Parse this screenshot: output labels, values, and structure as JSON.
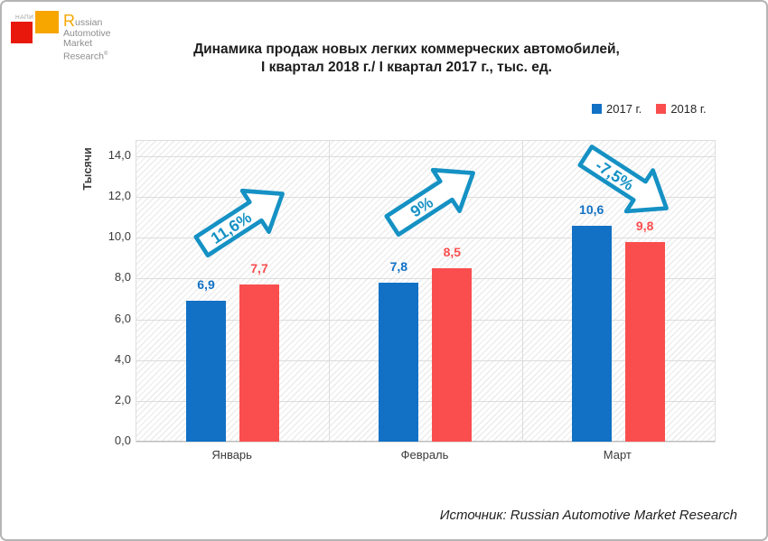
{
  "logo": {
    "napi": "НАПИ",
    "brand_lines": [
      "Russian",
      "Automotive",
      "Market",
      "Research"
    ],
    "registered": "®",
    "colors": {
      "red_square": "#E8190C",
      "orange_square": "#F7A600",
      "text": "#8C8C8C",
      "big_r": "#F7A600"
    }
  },
  "title": {
    "line1": "Динамика продаж новых легких коммерческих автомобилей,",
    "line2": "I квартал 2018 г./ I квартал 2017 г., тыс. ед."
  },
  "chart_data": {
    "type": "bar",
    "title": "Динамика продаж новых легких коммерческих автомобилей, I квартал 2018 г./ I квартал 2017 г., тыс. ед.",
    "categories": [
      "Январь",
      "Февраль",
      "Март"
    ],
    "series": [
      {
        "name": "2017 г.",
        "color": "#1271C5",
        "values": [
          6.9,
          7.8,
          10.6
        ],
        "labels": [
          "6,9",
          "7,8",
          "10,6"
        ]
      },
      {
        "name": "2018 г.",
        "color": "#FA4E4E",
        "values": [
          7.7,
          8.5,
          9.8
        ],
        "labels": [
          "7,7",
          "8,5",
          "9,8"
        ]
      }
    ],
    "growth_annotations": [
      {
        "category": "Январь",
        "label": "11,6%",
        "direction": "up"
      },
      {
        "category": "Февраль",
        "label": "9%",
        "direction": "up"
      },
      {
        "category": "Март",
        "label": "-7,5%",
        "direction": "down"
      }
    ],
    "ylabel": "Тысячи",
    "xlabel": "",
    "ylim": [
      0,
      14
    ],
    "yticks": [
      {
        "value": 14,
        "label": "14,0"
      },
      {
        "value": 12,
        "label": "12,0"
      },
      {
        "value": 10,
        "label": "10,0"
      },
      {
        "value": 8,
        "label": "8,0"
      },
      {
        "value": 6,
        "label": "6,0"
      },
      {
        "value": 4,
        "label": "4,0"
      },
      {
        "value": 2,
        "label": "2,0"
      },
      {
        "value": 0,
        "label": "0,0"
      }
    ],
    "grid": true,
    "legend_position": "top-right",
    "arrow_color": "#1591C4",
    "plot_background": "diagonal-hatch"
  },
  "source": "Источник: Russian Automotive Market Research"
}
